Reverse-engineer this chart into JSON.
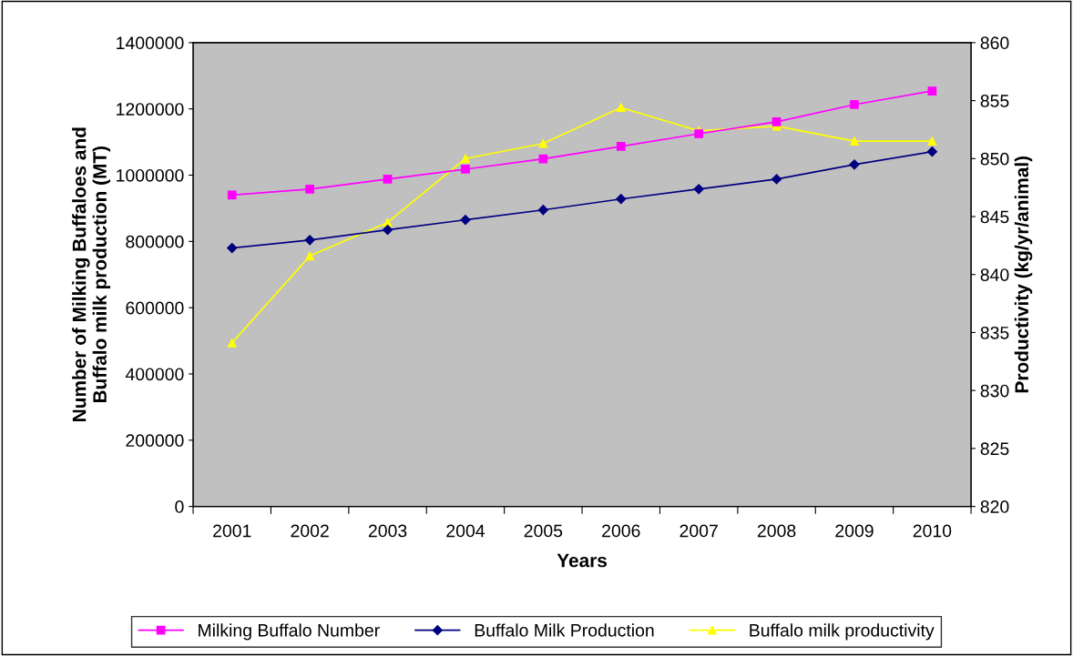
{
  "chart_data": {
    "type": "line",
    "xlabel": "Years",
    "ylabel": "Number of Milking Buffaloes and\nBuffalo milk production (MT)",
    "y2label": "Productivity (kg/yr/animal)",
    "categories": [
      "2001",
      "2002",
      "2003",
      "2004",
      "2005",
      "2006",
      "2007",
      "2008",
      "2009",
      "2010"
    ],
    "series": [
      {
        "name": "Milking Buffalo Number",
        "color": "#ff00ff",
        "marker": "square",
        "values": [
          940000,
          958000,
          988000,
          1018000,
          1049000,
          1087000,
          1125000,
          1161000,
          1213000,
          1254000
        ]
      },
      {
        "name": "Buffalo Milk Production",
        "color": "#000080",
        "marker": "diamond",
        "values": [
          780000,
          804000,
          835000,
          865000,
          895000,
          928000,
          958000,
          988000,
          1032000,
          1071000
        ]
      },
      {
        "name": "Buffalo milk productivity",
        "color": "#ffff00",
        "marker": "triangle",
        "axis": "y2",
        "values": [
          834.1,
          841.6,
          844.5,
          850.0,
          851.3,
          854.4,
          852.4,
          852.8,
          851.5,
          851.5
        ]
      }
    ],
    "ylim": [
      0,
      1400000
    ],
    "yticks": [
      0,
      200000,
      400000,
      600000,
      800000,
      1000000,
      1200000,
      1400000
    ],
    "y2lim": [
      820,
      860
    ],
    "y2ticks": [
      820,
      825,
      830,
      835,
      840,
      845,
      850,
      855,
      860
    ],
    "grid": false,
    "legend": "bottom"
  }
}
